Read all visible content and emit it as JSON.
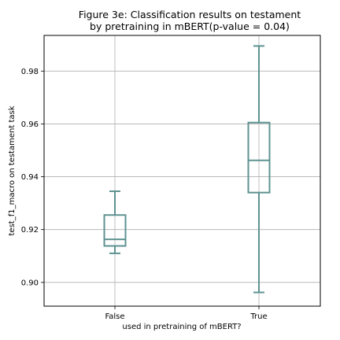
{
  "chart_data": {
    "type": "box",
    "title_lines": [
      "Figure 3e: Classification results on testament",
      "by pretraining in mBERT(p-value = 0.04)"
    ],
    "xlabel": "used in pretraining of mBERT?",
    "ylabel": "test_f1_macro on testament task",
    "categories": [
      "False",
      "True"
    ],
    "boxes": [
      {
        "label": "False",
        "whisker_low": 0.911,
        "q1": 0.9138,
        "median": 0.9163,
        "q3": 0.9255,
        "whisker_high": 0.9345
      },
      {
        "label": "True",
        "whisker_low": 0.8962,
        "q1": 0.934,
        "median": 0.9462,
        "q3": 0.9605,
        "whisker_high": 0.9895
      }
    ],
    "ylim": [
      0.891,
      0.9935
    ],
    "yticks": [
      "0.90",
      "0.92",
      "0.94",
      "0.96",
      "0.98"
    ],
    "grid": true,
    "color": "#5f9391"
  }
}
